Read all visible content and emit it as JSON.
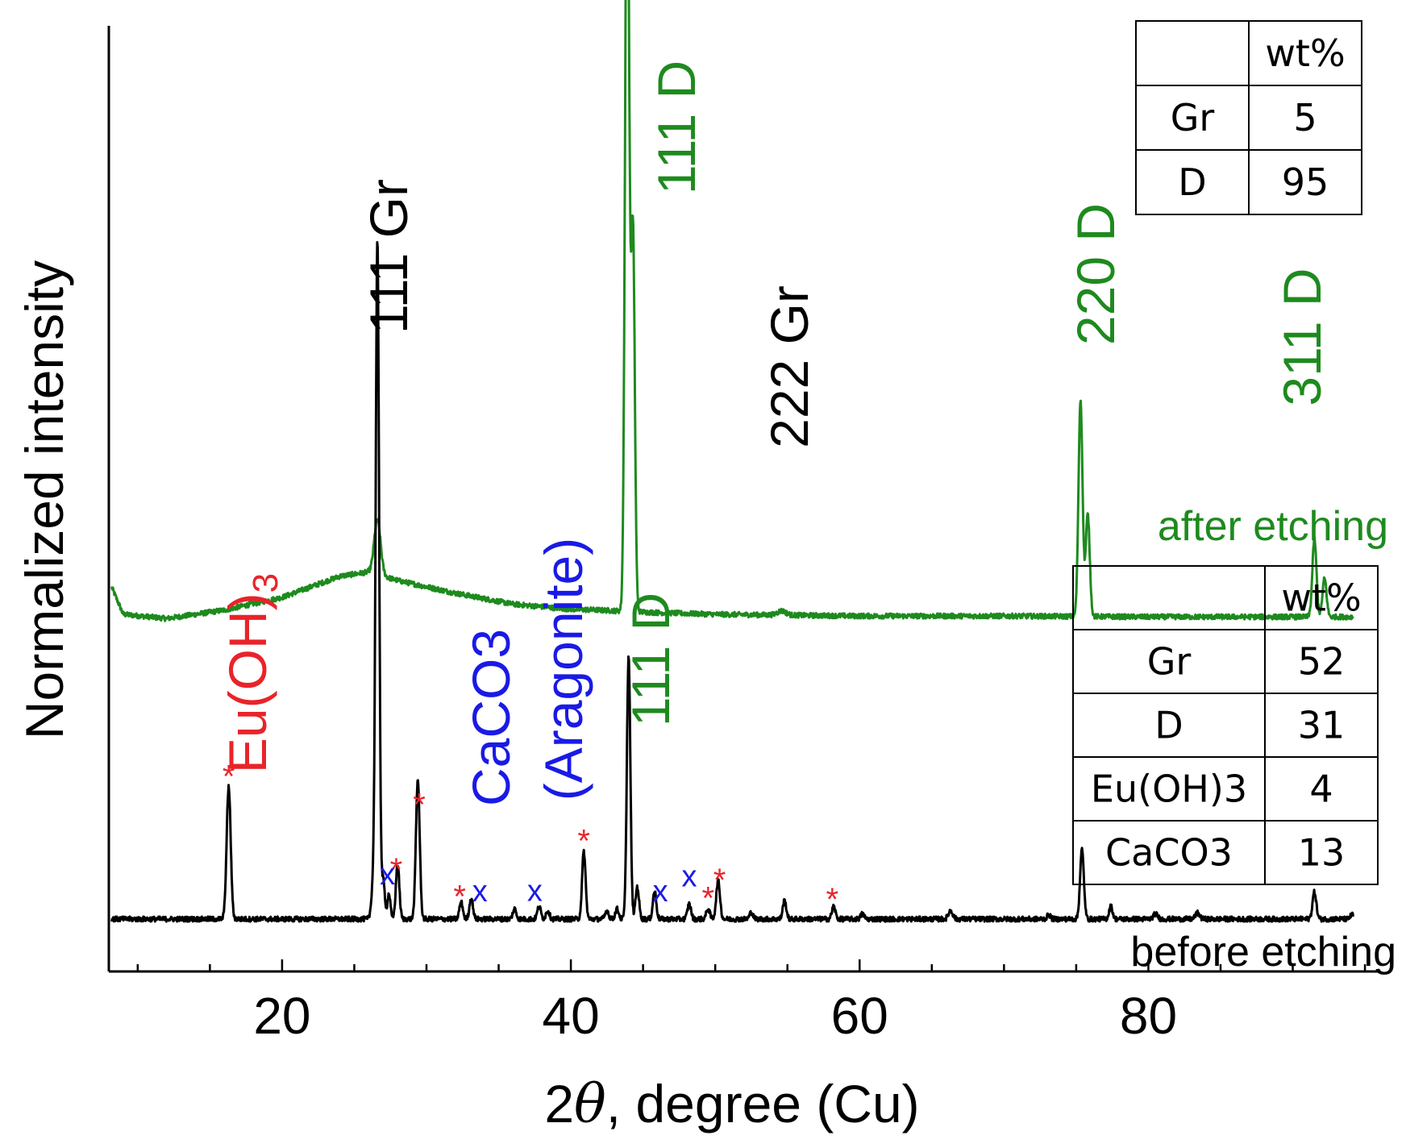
{
  "chart_data": {
    "type": "line",
    "title": "",
    "xlabel_prefix": "2",
    "xlabel_theta": "θ",
    "xlabel_suffix": ", degree (Cu)",
    "ylabel": "Normalized intensity",
    "xlim": [
      8,
      96
    ],
    "x_ticks": [
      20,
      40,
      60,
      80
    ],
    "x_tick_labels": [
      "20",
      "40",
      "60",
      "80"
    ],
    "y_ticks_shown": false,
    "colors": {
      "after": "#1e8a1e",
      "before": "#000000",
      "eu": "#e8242a",
      "caco3": "#1a1ae6",
      "diamond": "#1e8a1e",
      "graphite": "#000000"
    },
    "series": [
      {
        "name": "after etching",
        "color": "#1e8a1e",
        "baseline": [
          [
            8,
            0.4
          ],
          [
            9,
            0.36
          ],
          [
            12,
            0.355
          ],
          [
            16,
            0.365
          ],
          [
            20,
            0.38
          ],
          [
            24,
            0.405
          ],
          [
            26,
            0.41
          ],
          [
            28,
            0.4
          ],
          [
            32,
            0.385
          ],
          [
            36,
            0.372
          ],
          [
            40,
            0.366
          ],
          [
            42,
            0.365
          ],
          [
            46,
            0.362
          ],
          [
            50,
            0.36
          ],
          [
            60,
            0.358
          ],
          [
            70,
            0.358
          ],
          [
            80,
            0.357
          ],
          [
            96,
            0.357
          ]
        ],
        "peaks": [
          {
            "x": 26.6,
            "height": 0.065,
            "width": 0.22
          },
          {
            "x": 43.9,
            "height": 0.98,
            "width": 0.14
          },
          {
            "x": 44.3,
            "height": 0.45,
            "width": 0.13
          },
          {
            "x": 54.6,
            "height": 0.005,
            "width": 0.3
          },
          {
            "x": 75.3,
            "height": 0.255,
            "width": 0.14
          },
          {
            "x": 75.8,
            "height": 0.12,
            "width": 0.14
          },
          {
            "x": 91.5,
            "height": 0.092,
            "width": 0.14
          },
          {
            "x": 92.2,
            "height": 0.045,
            "width": 0.14
          }
        ]
      },
      {
        "name": "before etching",
        "color": "#000000",
        "baseline": [
          [
            8,
            0.0
          ],
          [
            96,
            0.0
          ]
        ],
        "peaks": [
          {
            "x": 16.3,
            "height": 0.156,
            "width": 0.14
          },
          {
            "x": 26.3,
            "height": 0.038,
            "width": 0.12
          },
          {
            "x": 26.6,
            "height": 0.8,
            "width": 0.12
          },
          {
            "x": 27.0,
            "height": 0.045,
            "width": 0.12
          },
          {
            "x": 27.4,
            "height": 0.03,
            "width": 0.1
          },
          {
            "x": 28.0,
            "height": 0.065,
            "width": 0.12
          },
          {
            "x": 29.4,
            "height": 0.165,
            "width": 0.13
          },
          {
            "x": 32.4,
            "height": 0.02,
            "width": 0.12
          },
          {
            "x": 33.1,
            "height": 0.025,
            "width": 0.12
          },
          {
            "x": 36.1,
            "height": 0.012,
            "width": 0.12
          },
          {
            "x": 37.8,
            "height": 0.015,
            "width": 0.12
          },
          {
            "x": 38.4,
            "height": 0.01,
            "width": 0.12
          },
          {
            "x": 40.9,
            "height": 0.08,
            "width": 0.12
          },
          {
            "x": 42.5,
            "height": 0.01,
            "width": 0.12
          },
          {
            "x": 43.2,
            "height": 0.012,
            "width": 0.12
          },
          {
            "x": 44.0,
            "height": 0.31,
            "width": 0.12
          },
          {
            "x": 44.6,
            "height": 0.038,
            "width": 0.12
          },
          {
            "x": 45.8,
            "height": 0.033,
            "width": 0.12
          },
          {
            "x": 48.2,
            "height": 0.018,
            "width": 0.12
          },
          {
            "x": 49.5,
            "height": 0.012,
            "width": 0.12
          },
          {
            "x": 50.2,
            "height": 0.045,
            "width": 0.13
          },
          {
            "x": 52.5,
            "height": 0.008,
            "width": 0.12
          },
          {
            "x": 54.8,
            "height": 0.022,
            "width": 0.12
          },
          {
            "x": 58.2,
            "height": 0.015,
            "width": 0.12
          },
          {
            "x": 60.2,
            "height": 0.006,
            "width": 0.12
          },
          {
            "x": 66.3,
            "height": 0.01,
            "width": 0.15
          },
          {
            "x": 73.1,
            "height": 0.005,
            "width": 0.12
          },
          {
            "x": 75.4,
            "height": 0.082,
            "width": 0.13
          },
          {
            "x": 77.4,
            "height": 0.015,
            "width": 0.12
          },
          {
            "x": 80.5,
            "height": 0.006,
            "width": 0.15
          },
          {
            "x": 83.4,
            "height": 0.007,
            "width": 0.15
          },
          {
            "x": 91.5,
            "height": 0.032,
            "width": 0.13
          },
          {
            "x": 94.1,
            "height": 0.005,
            "width": 0.12
          }
        ]
      }
    ],
    "series_labels": {
      "after": "after etching",
      "before": "before etching"
    },
    "peak_labels": {
      "gr111": "111 Gr",
      "d111_after": "111 D",
      "gr222": "222 Gr",
      "d220": "220 D",
      "d311": "311 D",
      "eu_text": "Eu(OH)",
      "eu_sub": "3",
      "caco3_line1": "CaCO3",
      "caco3_line2": "(Aragonite)",
      "d111_before": "111 D"
    },
    "markers": {
      "star_symbol": "*",
      "x_symbol": "x",
      "star_positions": [
        16.3,
        27.9,
        29.5,
        32.3,
        40.9,
        49.5,
        50.3,
        58.1
      ],
      "x_positions": [
        27.3,
        33.7,
        37.5,
        46.2,
        48.2
      ]
    },
    "tables": {
      "after": {
        "header": [
          "",
          "wt%"
        ],
        "rows": [
          [
            "Gr",
            "5"
          ],
          [
            "D",
            "95"
          ]
        ]
      },
      "before": {
        "header": [
          "",
          "wt%"
        ],
        "rows": [
          [
            "Gr",
            "52"
          ],
          [
            "D",
            "31"
          ],
          [
            "Eu(OH)3",
            "4"
          ],
          [
            "CaCO3",
            "13"
          ]
        ]
      }
    }
  }
}
